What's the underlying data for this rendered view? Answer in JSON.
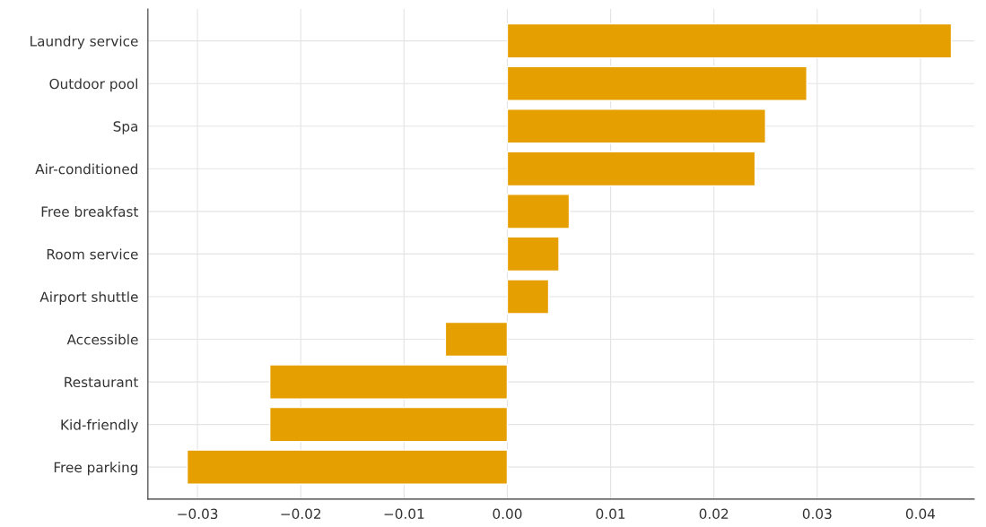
{
  "chart_data": {
    "type": "bar",
    "orientation": "horizontal",
    "categories": [
      "Laundry service",
      "Outdoor pool",
      "Spa",
      "Air-conditioned",
      "Free breakfast",
      "Room service",
      "Airport shuttle",
      "Accessible",
      "Restaurant",
      "Kid-friendly",
      "Free parking"
    ],
    "values": [
      0.043,
      0.029,
      0.025,
      0.024,
      0.006,
      0.005,
      0.004,
      -0.006,
      -0.023,
      -0.023,
      -0.031
    ],
    "color": "#e69f00",
    "xlim": [
      -0.0348,
      0.0452
    ],
    "xticks": [
      {
        "value": -0.03,
        "label": "−0.03"
      },
      {
        "value": -0.02,
        "label": "−0.02"
      },
      {
        "value": -0.01,
        "label": "−0.01"
      },
      {
        "value": 0.0,
        "label": "0.00"
      },
      {
        "value": 0.01,
        "label": "0.01"
      },
      {
        "value": 0.02,
        "label": "0.02"
      },
      {
        "value": 0.03,
        "label": "0.03"
      },
      {
        "value": 0.04,
        "label": "0.04"
      }
    ],
    "grid": true
  }
}
